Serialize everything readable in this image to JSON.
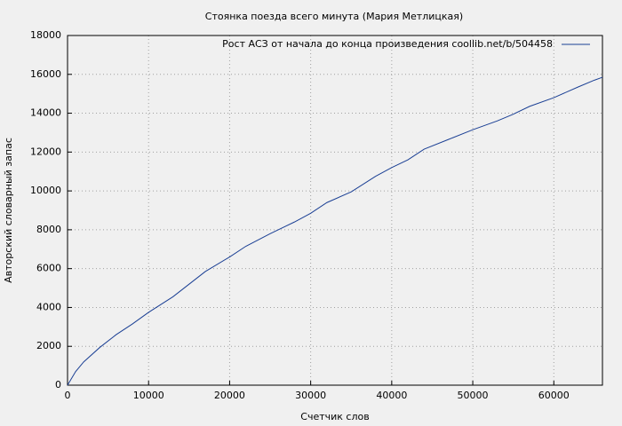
{
  "chart_data": {
    "type": "line",
    "title": "Стоянка поезда всего минута (Мария Метлицкая)",
    "xlabel": "Счетчик слов",
    "ylabel": "Авторский словарный запас",
    "x": [
      0,
      1000,
      2000,
      4000,
      6000,
      8000,
      10000,
      13000,
      15000,
      17000,
      20000,
      22000,
      25000,
      28000,
      30000,
      32000,
      35000,
      38000,
      40000,
      42000,
      44000,
      47000,
      50000,
      53000,
      55000,
      57000,
      60000,
      63000,
      65000,
      66000
    ],
    "series": [
      {
        "name": "Рост АСЗ от начала до конца произведения coollib.net/b/504458",
        "color": "#1a3f94",
        "values": [
          0,
          700,
          1200,
          1950,
          2600,
          3150,
          3750,
          4550,
          5200,
          5850,
          6600,
          7150,
          7800,
          8400,
          8850,
          9400,
          9950,
          10750,
          11200,
          11600,
          12150,
          12650,
          13150,
          13600,
          13950,
          14350,
          14800,
          15350,
          15700,
          15850
        ]
      }
    ],
    "xlim": [
      0,
      66000
    ],
    "ylim": [
      0,
      18000
    ],
    "xticks": [
      0,
      10000,
      20000,
      30000,
      40000,
      50000,
      60000
    ],
    "yticks": [
      0,
      2000,
      4000,
      6000,
      8000,
      10000,
      12000,
      14000,
      16000,
      18000
    ],
    "grid": true,
    "legend": "top-right"
  }
}
